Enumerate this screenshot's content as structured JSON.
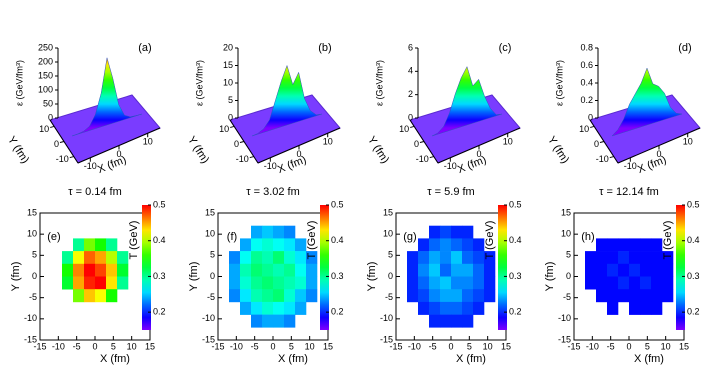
{
  "chart_data": [
    {
      "type": "surface",
      "label": "(a)",
      "z_label": "ε (GeV/fm³)",
      "zlim": [
        0,
        250
      ],
      "zticks": [
        0,
        50,
        100,
        150,
        200,
        250
      ],
      "x_label": "X (fm)",
      "y_label": "Y (fm)",
      "xticks": [
        -10,
        0,
        10
      ],
      "yticks": [
        10,
        0,
        -10
      ],
      "profile": [
        0,
        1,
        4,
        15,
        50,
        120,
        240,
        160,
        60,
        15,
        3,
        1,
        0
      ]
    },
    {
      "type": "surface",
      "label": "(b)",
      "z_label": "ε (GeV/fm³)",
      "zlim": [
        0,
        20
      ],
      "zticks": [
        0,
        5,
        10,
        15,
        20
      ],
      "x_label": "X (fm)",
      "y_label": "Y (fm)",
      "xticks": [
        -10,
        0,
        10
      ],
      "yticks": [
        10,
        0,
        -10
      ],
      "profile": [
        0,
        0.2,
        1,
        3,
        8,
        13,
        17,
        11,
        14,
        6,
        2,
        0.3,
        0
      ]
    },
    {
      "type": "surface",
      "label": "(c)",
      "z_label": "ε (GeV/fm³)",
      "zlim": [
        0,
        6
      ],
      "zticks": [
        0,
        2,
        4,
        6
      ],
      "x_label": "X (fm)",
      "y_label": "Y (fm)",
      "xticks": [
        -10,
        0,
        10
      ],
      "yticks": [
        10,
        0,
        -10
      ],
      "profile": [
        0,
        0.1,
        0.5,
        1.5,
        3,
        4.2,
        5,
        3.2,
        3.6,
        2,
        0.8,
        0.1,
        0
      ]
    },
    {
      "type": "surface",
      "label": "(d)",
      "z_label": "ε (GeV/fm³)",
      "zlim": [
        0,
        0.8
      ],
      "zticks": [
        0,
        0.2,
        0.4,
        0.6,
        0.8
      ],
      "x_label": "X (fm)",
      "y_label": "Y (fm)",
      "xticks": [
        -10,
        0,
        10
      ],
      "yticks": [
        10,
        0,
        -10
      ],
      "profile": [
        0,
        0.05,
        0.15,
        0.3,
        0.4,
        0.5,
        0.65,
        0.45,
        0.4,
        0.3,
        0.12,
        0.03,
        0
      ]
    },
    {
      "type": "heatmap",
      "label": "(e)",
      "title": "τ = 0.14 fm",
      "x_label": "X (fm)",
      "y_label": "Y (fm)",
      "xlim": [
        -15,
        15
      ],
      "ylim": [
        -15,
        15
      ],
      "xticks": [
        -15,
        -10,
        -5,
        0,
        5,
        10,
        15
      ],
      "yticks": [
        -15,
        -10,
        -5,
        0,
        5,
        10,
        15
      ],
      "colorbar_label": "T (GeV)",
      "clim": [
        0.15,
        0.5
      ],
      "cticks": [
        0.2,
        0.3,
        0.4,
        0.5
      ],
      "grid": [
        [
          null,
          null,
          null,
          null,
          null,
          null,
          null,
          null,
          null,
          null
        ],
        [
          null,
          null,
          null,
          null,
          null,
          null,
          null,
          null,
          null,
          null
        ],
        [
          null,
          null,
          null,
          0.3,
          0.38,
          0.35,
          0.3,
          null,
          null,
          null
        ],
        [
          null,
          null,
          0.3,
          0.42,
          0.47,
          0.45,
          0.4,
          0.3,
          null,
          null
        ],
        [
          null,
          null,
          0.35,
          0.46,
          0.5,
          0.48,
          0.44,
          0.33,
          null,
          null
        ],
        [
          null,
          null,
          0.33,
          0.45,
          0.49,
          0.5,
          0.43,
          0.3,
          null,
          null
        ],
        [
          null,
          null,
          null,
          0.38,
          0.44,
          0.42,
          0.35,
          null,
          null,
          null
        ],
        [
          null,
          null,
          null,
          null,
          null,
          null,
          null,
          null,
          null,
          null
        ],
        [
          null,
          null,
          null,
          null,
          null,
          null,
          null,
          null,
          null,
          null
        ],
        [
          null,
          null,
          null,
          null,
          null,
          null,
          null,
          null,
          null,
          null
        ]
      ]
    },
    {
      "type": "heatmap",
      "label": "(f)",
      "title": "τ = 3.02 fm",
      "x_label": "X (fm)",
      "y_label": "Y (fm)",
      "xlim": [
        -15,
        15
      ],
      "ylim": [
        -15,
        15
      ],
      "xticks": [
        -15,
        -10,
        -5,
        0,
        5,
        10,
        15
      ],
      "yticks": [
        -15,
        -10,
        -5,
        0,
        5,
        10,
        15
      ],
      "colorbar_label": "T (GeV)",
      "clim": [
        0.15,
        0.5
      ],
      "cticks": [
        0.2,
        0.3,
        0.4,
        0.5
      ],
      "grid": [
        [
          null,
          null,
          null,
          null,
          null,
          null,
          null,
          null,
          null,
          null
        ],
        [
          null,
          null,
          null,
          0.24,
          0.25,
          0.24,
          0.23,
          null,
          null,
          null
        ],
        [
          null,
          null,
          0.24,
          0.27,
          0.28,
          0.27,
          0.26,
          0.24,
          null,
          null
        ],
        [
          null,
          0.23,
          0.27,
          0.3,
          0.29,
          0.31,
          0.28,
          0.26,
          0.23,
          null
        ],
        [
          null,
          0.24,
          0.29,
          0.31,
          0.3,
          0.29,
          0.3,
          0.27,
          0.24,
          null
        ],
        [
          null,
          0.24,
          0.28,
          0.3,
          0.31,
          0.3,
          0.29,
          0.28,
          0.24,
          null
        ],
        [
          null,
          0.23,
          0.26,
          0.29,
          0.3,
          0.31,
          0.28,
          0.25,
          0.23,
          null
        ],
        [
          null,
          null,
          0.24,
          0.26,
          0.28,
          0.27,
          0.26,
          0.24,
          null,
          null
        ],
        [
          null,
          null,
          null,
          0.23,
          0.24,
          0.24,
          0.23,
          null,
          null,
          null
        ],
        [
          null,
          null,
          null,
          null,
          null,
          null,
          null,
          null,
          null,
          null
        ]
      ]
    },
    {
      "type": "heatmap",
      "label": "(g)",
      "title": "τ = 5.9 fm",
      "x_label": "X (fm)",
      "y_label": "Y (fm)",
      "xlim": [
        -15,
        15
      ],
      "ylim": [
        -15,
        15
      ],
      "xticks": [
        -15,
        -10,
        -5,
        0,
        5,
        10,
        15
      ],
      "yticks": [
        -15,
        -10,
        -5,
        0,
        5,
        10,
        15
      ],
      "colorbar_label": "T (GeV)",
      "clim": [
        0.15,
        0.5
      ],
      "cticks": [
        0.2,
        0.3,
        0.4,
        0.5
      ],
      "grid": [
        [
          null,
          null,
          null,
          null,
          null,
          null,
          null,
          null,
          null,
          null
        ],
        [
          null,
          null,
          null,
          0.2,
          0.21,
          0.2,
          0.2,
          null,
          null,
          null
        ],
        [
          null,
          null,
          0.2,
          0.22,
          0.23,
          0.22,
          0.21,
          0.2,
          null,
          null
        ],
        [
          null,
          0.2,
          0.22,
          0.24,
          0.23,
          0.25,
          0.22,
          0.21,
          0.2,
          null
        ],
        [
          null,
          0.2,
          0.23,
          0.25,
          0.22,
          0.24,
          0.24,
          0.22,
          0.2,
          null
        ],
        [
          null,
          0.2,
          0.22,
          0.24,
          0.25,
          0.23,
          0.23,
          0.22,
          0.2,
          null
        ],
        [
          null,
          0.2,
          0.21,
          0.23,
          0.24,
          0.24,
          0.22,
          0.21,
          0.2,
          null
        ],
        [
          null,
          null,
          0.2,
          0.21,
          0.22,
          0.22,
          0.21,
          0.2,
          null,
          null
        ],
        [
          null,
          null,
          null,
          0.2,
          0.2,
          0.2,
          0.2,
          null,
          null,
          null
        ],
        [
          null,
          null,
          null,
          null,
          null,
          null,
          null,
          null,
          null,
          null
        ]
      ]
    },
    {
      "type": "heatmap",
      "label": "(h)",
      "title": "τ = 12.14 fm",
      "x_label": "X (fm)",
      "y_label": "Y (fm)",
      "xlim": [
        -15,
        15
      ],
      "ylim": [
        -15,
        15
      ],
      "xticks": [
        -15,
        -10,
        -5,
        0,
        5,
        10,
        15
      ],
      "yticks": [
        -15,
        -10,
        -5,
        0,
        5,
        10,
        15
      ],
      "colorbar_label": "T (GeV)",
      "clim": [
        0.15,
        0.5
      ],
      "cticks": [
        0.2,
        0.3,
        0.4,
        0.5
      ],
      "grid": [
        [
          null,
          null,
          null,
          null,
          null,
          null,
          null,
          null,
          null,
          null
        ],
        [
          null,
          null,
          null,
          null,
          null,
          null,
          null,
          null,
          null,
          null
        ],
        [
          null,
          null,
          0.19,
          0.19,
          0.19,
          0.19,
          0.19,
          0.19,
          null,
          null
        ],
        [
          null,
          0.19,
          0.19,
          0.19,
          0.2,
          0.19,
          0.19,
          0.19,
          0.19,
          null
        ],
        [
          null,
          0.19,
          0.19,
          0.2,
          0.19,
          0.2,
          0.19,
          0.19,
          0.19,
          null
        ],
        [
          null,
          0.19,
          0.19,
          0.19,
          0.2,
          0.19,
          0.2,
          0.19,
          0.19,
          null
        ],
        [
          null,
          null,
          0.19,
          0.19,
          0.19,
          0.19,
          0.19,
          0.19,
          0.19,
          null
        ],
        [
          null,
          null,
          null,
          0.19,
          null,
          0.19,
          0.19,
          0.19,
          null,
          null
        ],
        [
          null,
          null,
          null,
          null,
          null,
          null,
          null,
          null,
          null,
          null
        ],
        [
          null,
          null,
          null,
          null,
          null,
          null,
          null,
          null,
          null,
          null
        ]
      ]
    }
  ]
}
